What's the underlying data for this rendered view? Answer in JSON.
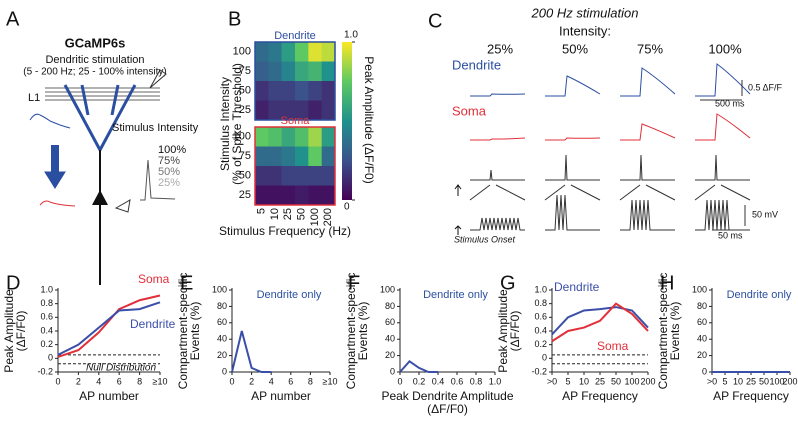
{
  "panel_a": {
    "label": "A",
    "title": "GCaMP6s",
    "stimulation": "Dendritic stimulation",
    "stimulation_range": "(5 - 200 Hz; 25 - 100% intensity)",
    "layer": "L1",
    "stimulus_intensity": "Stimulus Intensity",
    "intensities": [
      "100%",
      "75%",
      "50%",
      "25%"
    ]
  },
  "panel_c": {
    "label": "C",
    "title": "200 Hz stimulation",
    "subtitle": "Intensity:",
    "columns": [
      "25%",
      "50%",
      "75%",
      "100%"
    ],
    "rows": [
      "Dendrite",
      "Soma"
    ],
    "scale_df": "0.5 ΔF/F",
    "scale_time_slow": "500 ms",
    "scale_voltage": "50 mV",
    "scale_time_fast": "50 ms",
    "onset": "Stimulus Onset"
  },
  "chart_data": [
    {
      "type": "heatmap",
      "panel_label": "B",
      "x_label": "Stimulus Frequency (Hz)",
      "y_label": [
        "Stimulus Intensity",
        "(% of Spike Threshold)"
      ],
      "colorbar_label": "Peak Amplitude (ΔF/F0)",
      "colormap": "viridis",
      "zlim": [
        0,
        1
      ],
      "colorbar_ticks": [
        {
          "value": 1,
          "label": "1.0"
        },
        0
      ],
      "categories": [
        "5",
        "10",
        "25",
        "50",
        "100",
        "200"
      ],
      "rows": [
        "100",
        "75",
        "50",
        "25"
      ],
      "blocks": [
        {
          "name": "Dendrite",
          "color": "#2b4fa0",
          "values": [
            [
              0.35,
              0.4,
              0.55,
              0.75,
              0.95,
              0.9
            ],
            [
              0.3,
              0.35,
              0.45,
              0.6,
              0.65,
              0.5
            ],
            [
              0.15,
              0.2,
              0.2,
              0.25,
              0.2,
              0.15
            ],
            [
              0.1,
              0.15,
              0.15,
              0.15,
              0.1,
              0.15
            ]
          ]
        },
        {
          "name": "Soma",
          "color": "#e0303a",
          "values": [
            [
              0.75,
              0.7,
              0.6,
              0.7,
              0.85,
              0.55
            ],
            [
              0.35,
              0.35,
              0.4,
              0.5,
              0.75,
              0.35
            ],
            [
              0.15,
              0.15,
              0.2,
              0.2,
              0.2,
              0.2
            ],
            [
              0.05,
              0.05,
              0.05,
              0.08,
              0.05,
              0.05
            ]
          ]
        }
      ]
    },
    {
      "type": "line",
      "panel_label": "D",
      "x_label": "AP number",
      "y_label": [
        "Peak Amplitude",
        "(ΔF/F0)"
      ],
      "annotations": [
        "Null Distribution"
      ],
      "x": [
        0,
        2,
        4,
        6,
        8,
        10
      ],
      "xlim": [
        0,
        10
      ],
      "xticks": [
        0,
        2,
        4,
        6,
        8,
        {
          "value": 10,
          "label": "≥10"
        }
      ],
      "ylim": [
        -0.2,
        1.0
      ],
      "yticks": [
        -0.2,
        0,
        0.2,
        0.4,
        0.6,
        0.8,
        {
          "value": 1,
          "label": "1.0"
        }
      ],
      "reference_lines": [
        0.05,
        -0.08
      ],
      "series": [
        {
          "name": "Soma",
          "color": "#e0303a",
          "values": [
            0.02,
            0.12,
            0.38,
            0.72,
            0.85,
            0.92
          ]
        },
        {
          "name": "Dendrite",
          "color": "#3a4fa8",
          "values": [
            0.05,
            0.2,
            0.45,
            0.7,
            0.72,
            0.82
          ]
        }
      ]
    },
    {
      "type": "line",
      "panel_label": "E",
      "x_label": "AP number",
      "y_label": [
        "Compartment-specific",
        "Events (%)"
      ],
      "annotations": [
        "Dendrite only"
      ],
      "x": [
        0,
        1,
        2,
        3,
        4
      ],
      "xlim": [
        0,
        10
      ],
      "xticks": [
        0,
        2,
        4,
        6,
        8,
        {
          "value": 10,
          "label": "≥10"
        }
      ],
      "ylim": [
        0,
        100
      ],
      "yticks": [
        0,
        20,
        40,
        60,
        80,
        100
      ],
      "series": [
        {
          "name": "Dendrite",
          "color": "#3a4fa8",
          "values": [
            0,
            50,
            5,
            0,
            0
          ]
        }
      ]
    },
    {
      "type": "line",
      "panel_label": "F",
      "x_label": [
        "Peak Dendrite Amplitude",
        "(ΔF/F0)"
      ],
      "y_label": [
        "Compartment-specific",
        "Events (%)"
      ],
      "annotations": [
        "Dendrite only"
      ],
      "x": [
        0,
        0.1,
        0.2,
        0.3,
        0.4
      ],
      "xlim": [
        0,
        1
      ],
      "xticks": [
        0,
        0.2,
        0.4,
        0.6,
        0.8,
        {
          "value": 1,
          "label": "1.0"
        }
      ],
      "ylim": [
        0,
        100
      ],
      "yticks": [
        0,
        20,
        40,
        60,
        80,
        100
      ],
      "series": [
        {
          "name": "Dendrite",
          "color": "#3a4fa8",
          "values": [
            0,
            13,
            5,
            0,
            0
          ]
        }
      ]
    },
    {
      "type": "line",
      "panel_label": "G",
      "x_label": "AP Frequency",
      "y_label": [
        "Peak Amplitude",
        "(ΔF/F0)"
      ],
      "categories": [
        ">0",
        "5",
        "10",
        "25",
        "50",
        "100",
        "200"
      ],
      "ylim": [
        -0.2,
        1.0
      ],
      "yticks": [
        -0.2,
        0,
        0.2,
        0.4,
        0.6,
        0.8,
        {
          "value": 1,
          "label": "1.0"
        }
      ],
      "reference_lines": [
        0.05,
        -0.08
      ],
      "series": [
        {
          "name": "Dendrite",
          "color": "#3a4fa8",
          "values": [
            0.35,
            0.6,
            0.7,
            0.72,
            0.75,
            0.7,
            0.45
          ]
        },
        {
          "name": "Soma",
          "color": "#e0303a",
          "values": [
            0.25,
            0.4,
            0.45,
            0.55,
            0.8,
            0.65,
            0.4
          ]
        }
      ]
    },
    {
      "type": "line",
      "panel_label": "H",
      "x_label": "AP Frequency",
      "y_label": [
        "Compartment-specific",
        "Events (%)"
      ],
      "annotations": [
        "Dendrite only"
      ],
      "categories": [
        ">0",
        "5",
        "10",
        "25",
        "50",
        "100",
        "200"
      ],
      "ylim": [
        0,
        100
      ],
      "yticks": [
        0,
        20,
        40,
        60,
        80,
        100
      ],
      "series": [
        {
          "name": "Dendrite",
          "color": "#3a4fa8",
          "values": [
            0,
            0,
            0,
            0,
            0,
            0,
            0
          ]
        }
      ]
    }
  ]
}
